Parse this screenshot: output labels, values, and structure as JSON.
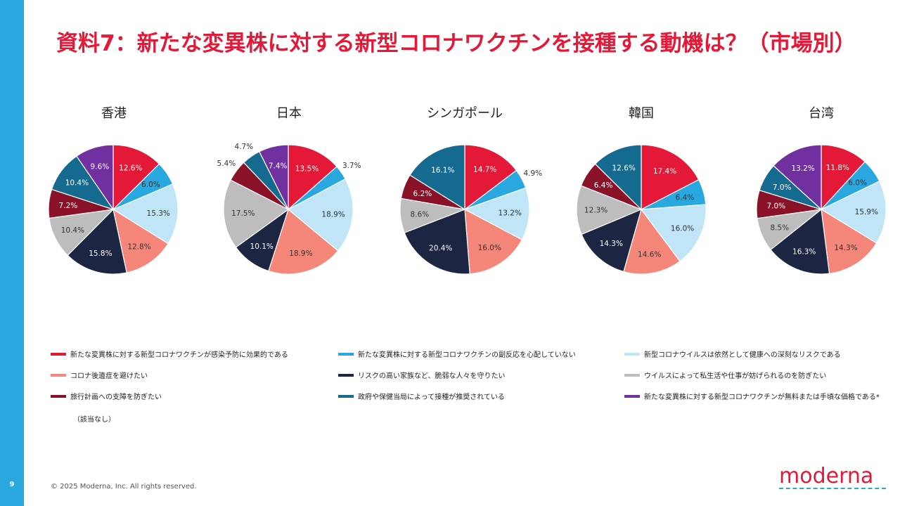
{
  "page": {
    "number": "9"
  },
  "title": "資料7：新たな変異株に対する新型コロナワクチンを接種する動機は？（市場別）",
  "legend_note": "（該当なし）",
  "footer": {
    "copyright": "© 2025 Moderna, Inc. All rights reserved.",
    "logo": "moderna"
  },
  "colors": [
    "#e31937",
    "#29a8e0",
    "#bfe5f6",
    "#f5877a",
    "#1c2541",
    "#bdbdbd",
    "#8a1228",
    "#146b8f",
    "#7030a0"
  ],
  "chart_data": {
    "type": "pie",
    "categories": [
      "新たな変異株に対する新型コロナワクチンが感染予防に効果的である",
      "新たな変異株に対する新型コロナワクチンの副反応を心配していない",
      "新型コロナウイルスは依然として健康への深刻なリスクである",
      "コロナ後遺症を避けたい",
      "リスクの高い家族など、脆弱な人々を守りたい",
      "ウイルスによって私生活や仕事が妨げられるのを防ぎたい",
      "旅行計画への支障を防ぎたい",
      "政府や保健当局によって接種が推奨されている",
      "新たな変異株に対する新型コロナワクチンが無料または手頃な価格である*"
    ],
    "series": [
      {
        "name": "香港",
        "values": [
          12.6,
          6.0,
          15.3,
          12.8,
          15.8,
          10.4,
          7.2,
          10.4,
          9.6
        ],
        "labels": [
          "12.6%",
          "6.0%",
          "15.3%",
          "12.8%",
          "15.8%",
          "10.4%",
          "7.2%",
          "10.4%",
          "9.6%"
        ]
      },
      {
        "name": "日本",
        "values": [
          13.5,
          3.7,
          18.9,
          18.9,
          10.1,
          17.5,
          5.4,
          4.7,
          7.4
        ],
        "labels": [
          "13.5%",
          "3.7%",
          "18.9%",
          "18.9%",
          "10.1%",
          "17.5%",
          "5.4%",
          "4.7%",
          "7.4%"
        ]
      },
      {
        "name": "シンガポール",
        "values": [
          14.7,
          4.9,
          13.2,
          16.0,
          20.4,
          8.6,
          6.2,
          16.1,
          0
        ],
        "labels": [
          "14.7%",
          "4.9%",
          "13.2%",
          "16.0%",
          "20.4%",
          "8.6%",
          "6.2%",
          "16.1%",
          ""
        ]
      },
      {
        "name": "韓国",
        "values": [
          17.4,
          6.4,
          16.0,
          14.6,
          14.3,
          12.3,
          6.4,
          12.6,
          0
        ],
        "labels": [
          "17.4%",
          "6.4%",
          "16.0%",
          "14.6%",
          "14.3%",
          "12.3%",
          "6.4%",
          "12.6%",
          ""
        ]
      },
      {
        "name": "台湾",
        "values": [
          11.8,
          6.0,
          15.9,
          14.3,
          16.3,
          8.5,
          7.0,
          7.0,
          13.2
        ],
        "labels": [
          "11.8%",
          "6.0%",
          "15.9%",
          "14.3%",
          "16.3%",
          "8.5%",
          "7.0%",
          "7.0%",
          "13.2%"
        ]
      }
    ]
  }
}
